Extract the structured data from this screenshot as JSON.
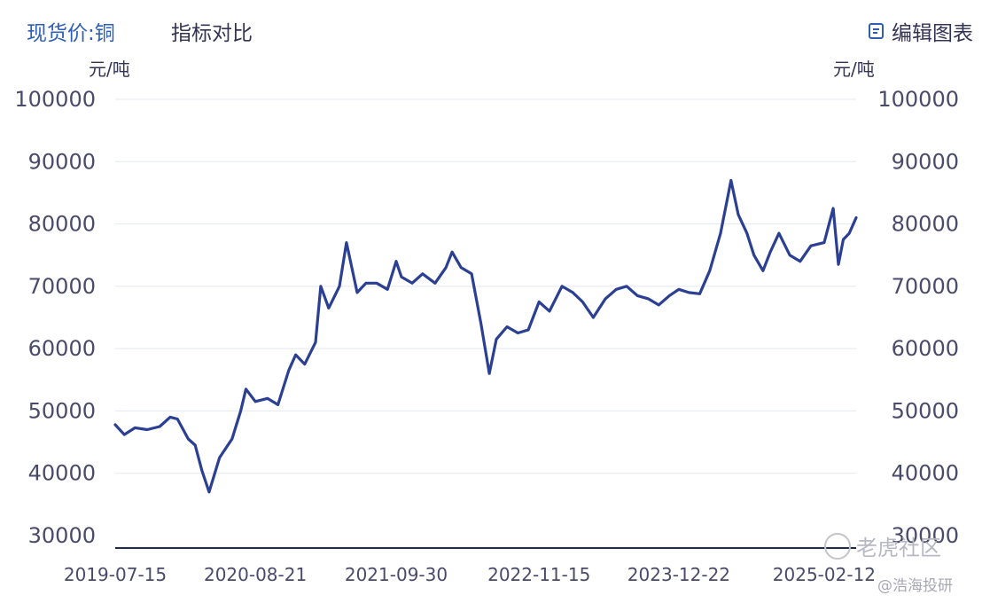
{
  "header": {
    "active_tab": "现货价:铜",
    "compare_tab": "指标对比",
    "edit_label": "编辑图表"
  },
  "units": {
    "left": "元/吨",
    "right": "元/吨"
  },
  "watermark": {
    "brand": "老虎社区",
    "author": "@浩海投研"
  },
  "colors": {
    "line": "#2b3f93",
    "axis": "#1f2d4a",
    "grid": "#e4e8ef",
    "tab_active": "#2f5fb5"
  },
  "chart_data": {
    "type": "line",
    "title": "",
    "ylabel": "元/吨",
    "ylim": [
      28000,
      100000
    ],
    "yticks": [
      "100000",
      "90000",
      "80000",
      "70000",
      "60000",
      "50000",
      "40000",
      "30000"
    ],
    "yticks_values": [
      100000,
      90000,
      80000,
      70000,
      60000,
      50000,
      40000,
      30000
    ],
    "xlim": [
      "2019-07-15",
      "2025-05-15"
    ],
    "xticks": [
      "2019-07-15",
      "2020-08-21",
      "2021-09-30",
      "2022-11-15",
      "2023-12-22",
      "2025-02-12"
    ],
    "grid": true,
    "series": [
      {
        "name": "现货价:铜",
        "x": [
          "2019-07-15",
          "2019-08-10",
          "2019-09-10",
          "2019-10-15",
          "2019-11-20",
          "2019-12-20",
          "2020-01-10",
          "2020-02-10",
          "2020-03-01",
          "2020-03-20",
          "2020-04-10",
          "2020-05-10",
          "2020-06-15",
          "2020-07-10",
          "2020-07-25",
          "2020-08-21",
          "2020-09-25",
          "2020-10-25",
          "2020-11-25",
          "2020-12-15",
          "2021-01-10",
          "2021-02-10",
          "2021-02-25",
          "2021-03-20",
          "2021-04-20",
          "2021-05-10",
          "2021-06-10",
          "2021-07-05",
          "2021-08-05",
          "2021-09-05",
          "2021-09-30",
          "2021-10-15",
          "2021-11-15",
          "2021-12-15",
          "2022-01-20",
          "2022-02-20",
          "2022-03-10",
          "2022-04-05",
          "2022-05-05",
          "2022-06-01",
          "2022-06-25",
          "2022-07-15",
          "2022-08-15",
          "2022-09-15",
          "2022-10-15",
          "2022-11-15",
          "2022-12-15",
          "2023-01-20",
          "2023-02-20",
          "2023-03-20",
          "2023-04-20",
          "2023-05-25",
          "2023-06-25",
          "2023-07-25",
          "2023-08-25",
          "2023-09-25",
          "2023-10-25",
          "2023-11-25",
          "2023-12-22",
          "2024-01-20",
          "2024-02-20",
          "2024-03-20",
          "2024-04-20",
          "2024-05-20",
          "2024-06-10",
          "2024-07-05",
          "2024-07-25",
          "2024-08-20",
          "2024-09-10",
          "2024-10-05",
          "2024-11-05",
          "2024-12-05",
          "2025-01-05",
          "2025-02-12",
          "2025-03-10",
          "2025-03-25",
          "2025-04-08",
          "2025-04-25",
          "2025-05-15"
        ],
        "y": [
          47800,
          46200,
          47300,
          47000,
          47500,
          49000,
          48700,
          45500,
          44500,
          40500,
          37000,
          42500,
          45500,
          50000,
          53500,
          51500,
          52000,
          51000,
          56500,
          59000,
          57500,
          61000,
          70000,
          66500,
          70000,
          77000,
          69000,
          70500,
          70500,
          69500,
          74000,
          71500,
          70500,
          72000,
          70500,
          73000,
          75500,
          73000,
          72000,
          64000,
          56000,
          61500,
          63500,
          62500,
          63000,
          67500,
          66000,
          70000,
          69000,
          67500,
          65000,
          68000,
          69500,
          70000,
          68500,
          68000,
          67000,
          68500,
          69500,
          69000,
          68800,
          72500,
          78500,
          87000,
          81500,
          78500,
          75000,
          72500,
          75500,
          78500,
          75000,
          74000,
          76500,
          77000,
          82500,
          73500,
          77500,
          78500,
          81000
        ]
      }
    ]
  }
}
